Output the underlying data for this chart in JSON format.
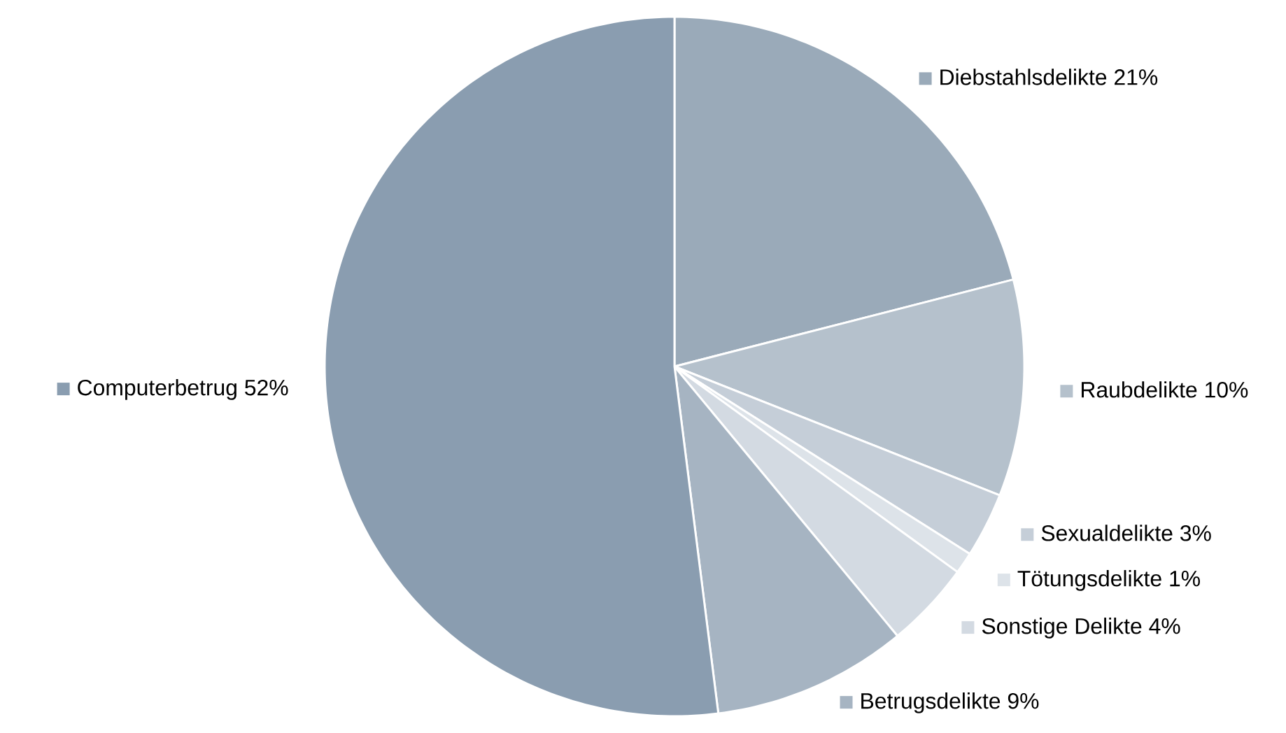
{
  "chart_data": {
    "type": "pie",
    "legend": "bottom left",
    "categories": [
      "Diebstahlsdelikte",
      "Raubdelikte",
      "Sexualdelikte",
      "Tötungsdelikte",
      "Sonstige Delikte",
      "Betrugsdelikte",
      "Computerbetrug"
    ],
    "values": [
      21,
      10,
      3,
      1,
      4,
      9,
      52
    ],
    "value_labels": [
      "21%",
      "10%",
      "3%",
      "1%",
      "4%",
      "9%",
      "52%"
    ],
    "colors": [
      "#9aaab9",
      "#b5c1cc",
      "#c5ced8",
      "#dde3e9",
      "#d3dae2",
      "#a6b4c2",
      "#8a9db0"
    ]
  }
}
